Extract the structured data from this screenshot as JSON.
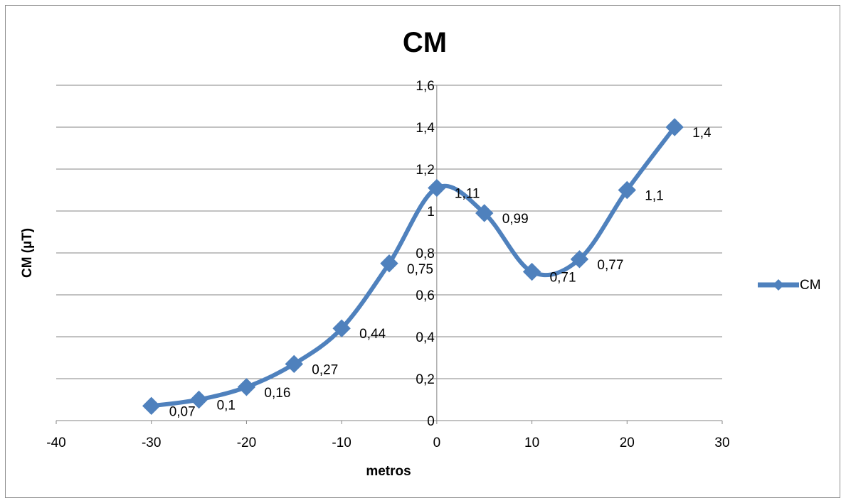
{
  "chart_data": {
    "type": "scatter",
    "title": "CM",
    "xlabel": "metros",
    "ylabel": "CM  (µT)",
    "xlim": [
      -40,
      30
    ],
    "ylim": [
      0,
      1.6
    ],
    "x_ticks": [
      "-40",
      "-30",
      "-20",
      "-10",
      "0",
      "10",
      "20",
      "30"
    ],
    "y_ticks": [
      "0",
      "0,2",
      "0,4",
      "0,6",
      "0,8",
      "1",
      "1,2",
      "1,4",
      "1,6"
    ],
    "x_tick_values": [
      -40,
      -30,
      -20,
      -10,
      0,
      10,
      20,
      30
    ],
    "y_tick_values": [
      0,
      0.2,
      0.4,
      0.6,
      0.8,
      1.0,
      1.2,
      1.4,
      1.6
    ],
    "grid": "horizontal",
    "legend_position": "right",
    "smooth": true,
    "series": [
      {
        "name": "CM",
        "color": "#4f81bd",
        "marker": "diamond",
        "x": [
          -30,
          -25,
          -20,
          -15,
          -10,
          -5,
          0,
          5,
          10,
          15,
          20,
          25
        ],
        "y": [
          0.07,
          0.1,
          0.16,
          0.27,
          0.44,
          0.75,
          1.11,
          0.99,
          0.71,
          0.77,
          1.1,
          1.4
        ],
        "labels": [
          "0,07",
          "0,1",
          "0,16",
          "0,27",
          "0,44",
          "0,75",
          "1,11",
          "0,99",
          "0,71",
          "0,77",
          "1,1",
          "1,4"
        ]
      }
    ]
  }
}
